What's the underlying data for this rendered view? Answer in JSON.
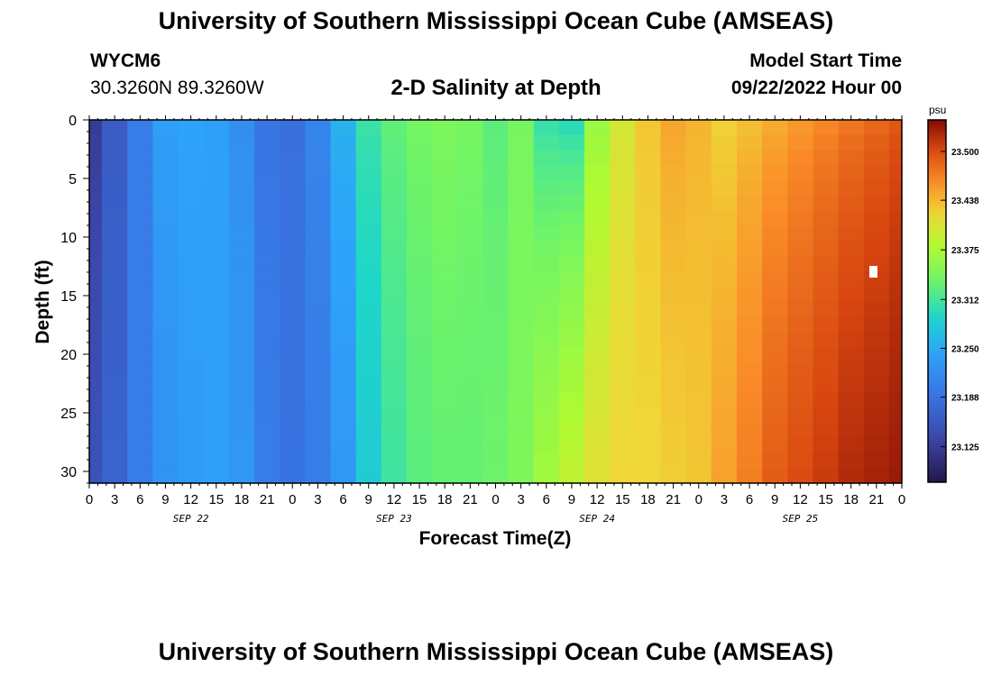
{
  "header": {
    "title": "University of Southern Mississippi Ocean Cube (AMSEAS)",
    "station": "WYCM6",
    "coordinates": "30.3260N  89.3260W",
    "plot_title": "2-D Salinity at Depth",
    "start_label": "Model Start Time",
    "start_value": "09/22/2022 Hour 00"
  },
  "footer": {
    "title": "University of Southern Mississippi Ocean Cube (AMSEAS)"
  },
  "chart_data": {
    "type": "heatmap",
    "title": "2-D Salinity at Depth",
    "xlabel": "Forecast Time(Z)",
    "ylabel": "Depth (ft)",
    "xlim": [
      0,
      96
    ],
    "ylim": [
      31,
      0
    ],
    "x_tick_labels": [
      "0",
      "3",
      "6",
      "9",
      "12",
      "15",
      "18",
      "21",
      "0",
      "3",
      "6",
      "9",
      "12",
      "15",
      "18",
      "21",
      "0",
      "3",
      "6",
      "9",
      "12",
      "15",
      "18",
      "21",
      "0",
      "3",
      "6",
      "9",
      "12",
      "15",
      "18",
      "21",
      "0"
    ],
    "y_ticks": [
      0,
      5,
      10,
      15,
      20,
      25,
      30
    ],
    "day_labels": [
      {
        "label": "SEP 22",
        "hour": 12
      },
      {
        "label": "SEP 23",
        "hour": 36
      },
      {
        "label": "SEP 24",
        "hour": 60
      },
      {
        "label": "SEP 25",
        "hour": 84
      }
    ],
    "colorbar": {
      "unit": "psu",
      "min": 23.08,
      "max": 23.54,
      "ticks": [
        23.125,
        23.188,
        23.25,
        23.312,
        23.375,
        23.438,
        23.5
      ],
      "tick_labels": [
        "23.125",
        "23.188",
        "23.250",
        "23.312",
        "23.375",
        "23.438",
        "23.500"
      ]
    },
    "salinity_profile_by_hour": {
      "hours": [
        0,
        3,
        6,
        9,
        12,
        15,
        18,
        21,
        24,
        27,
        30,
        33,
        36,
        39,
        42,
        45,
        48,
        51,
        54,
        57,
        60,
        63,
        66,
        69,
        72,
        75,
        78,
        81,
        84,
        87,
        90,
        93,
        96
      ],
      "surface_psu": [
        23.12,
        23.16,
        23.2,
        23.24,
        23.245,
        23.24,
        23.22,
        23.19,
        23.185,
        23.21,
        23.26,
        23.31,
        23.33,
        23.34,
        23.345,
        23.34,
        23.325,
        23.34,
        23.3,
        23.29,
        23.36,
        23.4,
        23.43,
        23.45,
        23.44,
        23.42,
        23.43,
        23.44,
        23.45,
        23.46,
        23.47,
        23.48,
        23.49
      ],
      "bottom_psu": [
        23.15,
        23.17,
        23.2,
        23.225,
        23.235,
        23.24,
        23.23,
        23.2,
        23.19,
        23.2,
        23.23,
        23.28,
        23.31,
        23.325,
        23.33,
        23.33,
        23.335,
        23.345,
        23.37,
        23.39,
        23.41,
        23.42,
        23.42,
        23.425,
        23.43,
        23.45,
        23.47,
        23.49,
        23.5,
        23.51,
        23.52,
        23.525,
        23.53
      ]
    }
  }
}
